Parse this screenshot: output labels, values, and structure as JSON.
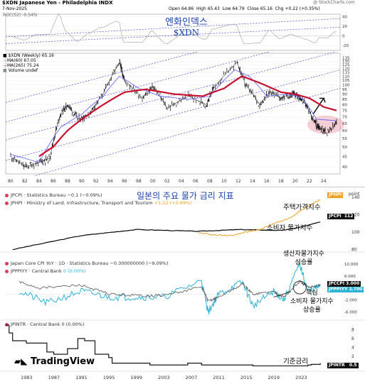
{
  "top_chart": {
    "symbol_line": "$XDN Japanese Yen - Philadelphia INDX",
    "date": "7-Nov-2025",
    "ohlc": {
      "open_label": "Open",
      "open": "64.86",
      "high_label": "High",
      "high": "65.43",
      "low_label": "Low",
      "low": "64.79",
      "close_label": "Close",
      "close": "65.16",
      "chg_label": "Chg",
      "chg": "+0.22 (+0.35%)"
    },
    "watermark": "@ StockCharts.com",
    "roc_label": "ROC(52) -0.54%",
    "price_label": "$XDN (Weekly) 65.16",
    "ma60_label": "MA(60) 67.05",
    "ma265_label": "MA(265) 75.24",
    "volume_label": "Volume undef",
    "annotation_line1": "엔화인덱스",
    "annotation_line2": "$XDN",
    "roc_ticks": [
      "40",
      "20",
      "0",
      "-20"
    ],
    "price_ticks": [
      "135",
      "130",
      "125",
      "120",
      "115",
      "110",
      "105",
      "100",
      "95",
      "90",
      "85",
      "80",
      "75",
      "70",
      "65",
      "60",
      "55",
      "50",
      "45",
      "40"
    ],
    "x_ticks": [
      "80",
      "82",
      "84",
      "86",
      "88",
      "90",
      "92",
      "94",
      "96",
      "98",
      "00",
      "02",
      "04",
      "06",
      "08",
      "10",
      "12",
      "14",
      "16",
      "18",
      "20",
      "22",
      "24"
    ]
  },
  "bottom_chart": {
    "title_annotation": "일본의 주요 물가 금리 지표",
    "pane1": {
      "legend1": "JPCPI · Statistics Bureau",
      "legend1_value": "−0.1 (−0.09%)",
      "legend2": "JPHPI · Ministry of Land, Infrastructure, Transport and Tourism",
      "legend2_value": "+1.22 (+0.89%)",
      "label_housing": "주택가격지수",
      "label_cpi": "소비자 물가지수",
      "tag_jphpi": "JPHPI",
      "tag_jpcpi": "JPCPI",
      "tag_jpcpi_value": "112",
      "scale_word": "point",
      "ticks": [
        "140",
        "120",
        "100",
        "80"
      ]
    },
    "pane2": {
      "legend1": "Japan Core CPI YoY · 1D · Statistics Bureau",
      "legend1_value": "−0.300000000 (−9.09%)",
      "legend2": "JPPPIYY · Central Bank",
      "legend2_value": "0 (0.00%)",
      "label_ppi_1": "생산자물가지수",
      "label_ppi_2": "상승률",
      "label_core_cpi_1": "핵심",
      "label_core_cpi_2": "소비자 물가지수",
      "label_core_cpi_3": "상승률",
      "tag_jpccpi": "JPCCPI",
      "tag_jpccpi_value": "3.000",
      "tag_jpppiyy": "JPPPIYY",
      "tag_jpppiyy_value": "2.700",
      "ticks": [
        "10.000",
        "6.000",
        "2.000",
        "-2.000",
        "-6.000"
      ]
    },
    "pane3": {
      "legend1": "JPINTR · Central Bank",
      "legend1_value": "0 (0.00%)",
      "label_rate": "기준금리",
      "tag_jpintr": "JPINTR",
      "tag_jpintr_value": "0.5",
      "ticks": [
        "8",
        "6",
        "4",
        "2"
      ]
    },
    "brand": "TradingView",
    "x_ticks": [
      "1983",
      "1987",
      "1991",
      "1995",
      "1999",
      "2003",
      "2007",
      "2011",
      "2015",
      "2019",
      "2023"
    ]
  },
  "colors": {
    "price": "#000000",
    "ma60": "#6b6bff",
    "ma265": "#c8102e",
    "roc": "#aaaaaa",
    "channel": "#4a4ad0",
    "housing": "#f0a020",
    "cpi": "#000000",
    "core_cpi": "#2bb3d6",
    "ppi": "#555555",
    "rate": "#000000",
    "annotation": "#1a3fb0"
  },
  "chart_data": [
    {
      "type": "line",
      "title": "$XDN Japanese Yen - Philadelphia INDX",
      "xlabel": "",
      "ylabel": "",
      "ylim": [
        40,
        140
      ],
      "series": [
        {
          "name": "$XDN (Weekly)",
          "x": [
            1980,
            1982,
            1984,
            1985.5,
            1987,
            1988,
            1989.5,
            1991,
            1993,
            1995.3,
            1996,
            1998.5,
            2000,
            2002,
            2005,
            2007.5,
            2008.5,
            2011.8,
            2013,
            2015,
            2016.5,
            2018,
            2019.5,
            2020.5,
            2021.5,
            2022.8,
            2023.5,
            2024.5,
            2025.8
          ],
          "y": [
            45,
            40,
            42,
            44,
            72,
            80,
            68,
            72,
            90,
            128,
            105,
            86,
            98,
            77,
            88,
            80,
            96,
            128,
            100,
            80,
            93,
            86,
            90,
            88,
            80,
            65,
            62,
            58,
            65
          ]
        },
        {
          "name": "MA(60)",
          "x": [
            1980,
            1984,
            1987,
            1990,
            1993,
            1995.3,
            1998,
            2001,
            2005,
            2008,
            2011.5,
            2013.5,
            2016,
            2019,
            2021,
            2023,
            2025.8
          ],
          "y": [
            46,
            42,
            62,
            72,
            88,
            110,
            96,
            88,
            85,
            88,
            118,
            110,
            88,
            90,
            86,
            68,
            67
          ]
        },
        {
          "name": "MA(265)",
          "x": [
            1984,
            1986,
            1988,
            1990,
            1993,
            1996,
            1999,
            2003,
            2007,
            2010,
            2012.5,
            2015,
            2018,
            2020,
            2022,
            2024,
            2025.8
          ],
          "y": [
            45,
            50,
            60,
            68,
            80,
            92,
            95,
            90,
            88,
            96,
            110,
            102,
            92,
            90,
            86,
            78,
            75
          ]
        }
      ]
    },
    {
      "type": "line",
      "title": "",
      "xlabel": "",
      "ylabel": "point",
      "ylim": [
        80,
        140
      ],
      "series": [
        {
          "name": "JPCPI",
          "x": [
            1981,
            1991,
            1999,
            2008,
            2014,
            2020,
            2022,
            2025.8
          ],
          "y": [
            80,
            96,
            103,
            101,
            103,
            102,
            104,
            112
          ]
        },
        {
          "name": "JPHPI",
          "x": [
            2008,
            2010,
            2013,
            2015,
            2017,
            2019,
            2021,
            2023,
            2025.8
          ],
          "y": [
            100,
            97,
            96,
            100,
            103,
            110,
            115,
            125,
            138
          ]
        }
      ]
    },
    {
      "type": "line",
      "title": "",
      "xlabel": "",
      "ylabel": "",
      "ylim": [
        -8,
        11
      ],
      "series": [
        {
          "name": "Japan Core CPI YoY",
          "x": [
            1982,
            1985,
            1991,
            1995,
            1999,
            2003,
            2008.5,
            2009.5,
            2011,
            2014.5,
            2016,
            2019,
            2020.5,
            2022.8,
            2024,
            2025.8
          ],
          "y": [
            4,
            2,
            3,
            0,
            -0.5,
            -0.5,
            2.4,
            -2.4,
            -1,
            3.3,
            0,
            0.8,
            -1,
            4.2,
            2.3,
            3.0
          ]
        },
        {
          "name": "JPPPIYY",
          "x": [
            1982,
            1986,
            1991,
            1995,
            1999,
            2003,
            2008.5,
            2009.5,
            2011,
            2014.5,
            2016,
            2019,
            2020.5,
            2022.8,
            2024,
            2025.8
          ],
          "y": [
            1,
            -3,
            1,
            -1,
            -1,
            -1,
            4.5,
            -6,
            0,
            4,
            -4,
            1,
            -2,
            10,
            1,
            2.7
          ]
        }
      ]
    },
    {
      "type": "line",
      "title": "",
      "xlabel": "",
      "ylabel": "",
      "ylim": [
        0,
        9
      ],
      "series": [
        {
          "name": "JPINTR",
          "x": [
            1980,
            1980.5,
            1981,
            1983,
            1986,
            1987,
            1989,
            1990.5,
            1991.5,
            1993,
            1995,
            1995.5,
            2001,
            2006.5,
            2008.5,
            2010,
            2016,
            2024,
            2024.5,
            2025.8
          ],
          "y": [
            9,
            7.25,
            5.5,
            5.0,
            3.0,
            2.5,
            3.75,
            6.0,
            5.5,
            2.5,
            1.75,
            0.5,
            0.1,
            0.5,
            0.1,
            0.1,
            -0.1,
            0.1,
            0.25,
            0.5
          ]
        }
      ]
    }
  ]
}
